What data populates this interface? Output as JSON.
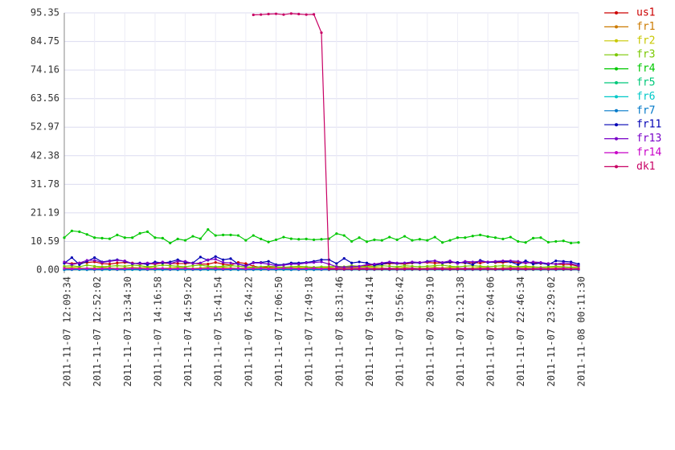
{
  "chart_data": {
    "type": "line",
    "categories": [
      "2011-11-07 12:09:34",
      null,
      null,
      null,
      "2011-11-07 12:52:02",
      null,
      null,
      null,
      "2011-11-07 13:34:30",
      null,
      null,
      null,
      "2011-11-07 14:16:58",
      null,
      null,
      null,
      "2011-11-07 14:59:26",
      null,
      null,
      null,
      "2011-11-07 15:41:54",
      null,
      null,
      null,
      "2011-11-07 16:24:22",
      null,
      null,
      null,
      "2011-11-07 17:06:50",
      null,
      null,
      null,
      "2011-11-07 17:49:18",
      null,
      null,
      null,
      "2011-11-07 18:31:46",
      null,
      null,
      null,
      "2011-11-07 19:14:14",
      null,
      null,
      null,
      "2011-11-07 19:56:42",
      null,
      null,
      null,
      "2011-11-07 20:39:10",
      null,
      null,
      null,
      "2011-11-07 21:21:38",
      null,
      null,
      null,
      "2011-11-07 22:04:06",
      null,
      null,
      null,
      "2011-11-07 22:46:34",
      null,
      null,
      null,
      "2011-11-07 23:29:02",
      null,
      null,
      null,
      "2011-11-08 00:11:30"
    ],
    "ylim": [
      0,
      95.35
    ],
    "yticks": [
      {
        "value": 0,
        "label": "0.00"
      },
      10.59,
      21.19,
      31.78,
      42.38,
      52.97,
      63.56,
      74.16,
      84.75,
      95.35
    ],
    "grid": true,
    "legend": "right",
    "series": [
      {
        "name": "us1",
        "color": "#cc0000",
        "values": [
          2.6,
          2.4,
          2.6,
          2.8,
          3.0,
          2.4,
          2.2,
          2.6,
          2.8,
          2.6,
          2.2,
          2.4,
          2.2,
          2.6,
          2.4,
          2.4,
          2.4,
          2.6,
          2.2,
          2.2,
          2.8,
          2.2,
          1.8,
          2.8,
          2.4,
          1.4,
          1.0,
          1.0,
          0.8,
          0.8,
          0.8,
          0.8,
          0.8,
          0.8,
          0.8,
          0.8,
          0.8,
          1.0,
          1.0,
          1.2,
          1.6,
          2.0,
          2.2,
          2.4,
          2.4,
          2.2,
          2.6,
          2.8,
          2.8,
          2.6,
          2.6,
          2.8,
          2.8,
          2.6,
          2.8,
          2.6,
          3.0,
          2.8,
          2.8,
          3.0,
          2.8,
          2.6,
          2.8,
          2.4,
          2.4,
          2.2,
          2.0,
          2.0,
          1.4
        ]
      },
      {
        "name": "fr1",
        "color": "#cc7a00",
        "values": [
          0.4,
          0.6,
          0.4,
          0.5,
          0.4,
          0.6,
          0.5,
          0.4,
          0.6,
          0.4,
          0.4,
          0.6,
          0.4,
          0.5,
          0.4,
          0.6,
          0.5,
          0.4,
          0.6,
          0.4,
          0.4,
          0.6,
          0.4,
          0.5,
          0.4,
          0.6,
          0.5,
          0.4,
          0.6,
          0.4,
          0.4,
          0.6,
          0.4,
          0.5,
          0.4,
          0.6,
          0.5,
          0.4,
          0.6,
          0.4,
          0.4,
          0.6,
          0.4,
          0.5,
          0.4,
          0.6,
          0.5,
          0.4,
          0.6,
          0.4,
          0.4,
          0.6,
          0.4,
          0.5,
          0.4,
          0.6,
          0.5,
          0.4,
          0.6,
          0.4,
          0.4,
          0.6,
          0.4,
          0.5,
          0.4,
          0.6,
          0.5,
          0.4,
          0.6
        ]
      },
      {
        "name": "fr2",
        "color": "#c8c800",
        "values": [
          0.8,
          1.0,
          0.8,
          0.6,
          0.8,
          1.0,
          0.8,
          0.6,
          0.8,
          1.0,
          0.8,
          1.0,
          0.8,
          0.6,
          0.8,
          1.0,
          0.8,
          0.6,
          0.8,
          1.0,
          0.8,
          1.0,
          0.8,
          0.6,
          0.8,
          1.0,
          0.8,
          0.6,
          0.8,
          1.0,
          0.8,
          1.0,
          0.8,
          0.6,
          0.8,
          1.0,
          0.8,
          0.6,
          0.8,
          1.0,
          0.8,
          1.0,
          0.8,
          0.6,
          0.8,
          1.0,
          0.8,
          0.6,
          0.8,
          1.0,
          0.8,
          1.0,
          0.8,
          0.6,
          0.8,
          1.0,
          0.8,
          0.6,
          0.8,
          1.0,
          0.8,
          1.0,
          0.8,
          0.6,
          0.8,
          1.0,
          0.8,
          0.6,
          0.8
        ]
      },
      {
        "name": "fr3",
        "color": "#7ac800",
        "values": [
          1.4,
          1.6,
          1.2,
          1.8,
          1.4,
          1.2,
          1.4,
          1.6,
          1.4,
          1.8,
          1.6,
          1.2,
          1.4,
          1.8,
          1.6,
          1.4,
          1.2,
          1.6,
          1.8,
          1.4,
          1.2,
          1.4,
          1.6,
          1.4,
          1.2,
          1.0,
          1.2,
          1.4,
          1.2,
          1.0,
          1.2,
          1.4,
          1.2,
          1.0,
          1.2,
          1.2,
          1.4,
          1.2,
          1.6,
          1.4,
          1.2,
          1.4,
          1.6,
          1.4,
          1.2,
          1.6,
          1.4,
          1.2,
          1.4,
          1.6,
          1.8,
          1.4,
          1.2,
          1.4,
          1.6,
          1.4,
          1.2,
          1.4,
          1.6,
          1.4,
          1.2,
          1.4,
          1.2,
          1.0,
          1.2,
          1.4,
          1.2,
          1.0,
          1.2
        ]
      },
      {
        "name": "fr4",
        "color": "#00c800",
        "values": [
          12.0,
          14.5,
          14.2,
          13.2,
          12.0,
          11.8,
          11.6,
          13.0,
          12.0,
          12.0,
          13.6,
          14.2,
          12.0,
          11.8,
          10.0,
          11.5,
          11.0,
          12.5,
          11.6,
          15.0,
          12.8,
          13.0,
          13.0,
          12.8,
          11.0,
          12.8,
          11.5,
          10.4,
          11.2,
          12.2,
          11.6,
          11.4,
          11.5,
          11.2,
          11.4,
          11.6,
          13.5,
          12.8,
          10.6,
          12.0,
          10.5,
          11.2,
          11.0,
          12.2,
          11.2,
          12.5,
          11.0,
          11.4,
          11.0,
          12.2,
          10.2,
          11.0,
          12.0,
          12.0,
          12.6,
          13.0,
          12.4,
          12.0,
          11.5,
          12.2,
          10.6,
          10.2,
          11.8,
          12.0,
          10.3,
          10.6,
          10.8,
          10.0,
          10.2
        ]
      },
      {
        "name": "fr5",
        "color": "#00c87a",
        "values": [
          0.2,
          0.3,
          0.2,
          0.2,
          0.3,
          0.2,
          0.2,
          0.3,
          0.2,
          0.2,
          0.2,
          0.3,
          0.2,
          0.2,
          0.3,
          0.2,
          0.2,
          0.3,
          0.2,
          0.2,
          0.2,
          0.3,
          0.2,
          0.2,
          0.3,
          0.2,
          0.2,
          0.3,
          0.2,
          0.2,
          0.2,
          0.3,
          0.2,
          0.2,
          0.3,
          0.2,
          0.2,
          0.3,
          0.2,
          0.2,
          0.2,
          0.3,
          0.2,
          0.2,
          0.3,
          0.2,
          0.2,
          0.3,
          0.2,
          0.2,
          0.2,
          0.3,
          0.2,
          0.2,
          0.3,
          0.2,
          0.2,
          0.3,
          0.2,
          0.2,
          0.2,
          0.3,
          0.2,
          0.2,
          0.3,
          0.2,
          0.2,
          0.3,
          0.2
        ]
      },
      {
        "name": "fr6",
        "color": "#00c8c8",
        "values": [
          0.1,
          0.2,
          0.1,
          0.1,
          0.2,
          0.1,
          0.1,
          0.2,
          0.1,
          0.1,
          0.1,
          0.2,
          0.1,
          0.1,
          0.2,
          0.1,
          0.1,
          0.2,
          0.1,
          0.1,
          0.1,
          0.2,
          0.1,
          0.1,
          0.2,
          0.1,
          0.1,
          0.2,
          0.1,
          0.1,
          0.1,
          0.2,
          0.1,
          0.1,
          0.2,
          0.1,
          0.1,
          0.2,
          0.1,
          0.1,
          0.1,
          0.2,
          0.1,
          0.1,
          0.2,
          0.1,
          0.1,
          0.2,
          0.1,
          0.1,
          0.1,
          0.2,
          0.1,
          0.1,
          0.2,
          0.1,
          0.1,
          0.2,
          0.1,
          0.1,
          0.1,
          0.2,
          0.1,
          0.1,
          0.2,
          0.1,
          0.1,
          0.2,
          0.1
        ]
      },
      {
        "name": "fr7",
        "color": "#0078c8",
        "values": [
          0.1,
          0.1,
          0.2,
          0.1,
          0.1,
          0.1,
          0.2,
          0.1,
          0.1,
          0.2,
          0.1,
          0.1,
          0.2,
          0.1,
          0.1,
          0.1,
          0.2,
          0.1,
          0.1,
          0.2,
          0.1,
          0.1,
          0.2,
          0.1,
          0.1,
          0.1,
          0.2,
          0.1,
          0.1,
          0.2,
          0.1,
          0.1,
          0.2,
          0.1,
          0.1,
          0.1,
          0.2,
          0.1,
          0.1,
          0.2,
          0.1,
          0.1,
          0.2,
          0.1,
          0.1,
          0.1,
          0.2,
          0.1,
          0.1,
          0.2,
          0.1,
          0.1,
          0.2,
          0.1,
          0.1,
          0.1,
          0.2,
          0.1,
          0.1,
          0.2,
          0.1,
          0.1,
          0.2,
          0.1,
          0.1,
          0.1,
          0.2,
          0.1,
          0.1
        ]
      },
      {
        "name": "fr11",
        "color": "#0000b4",
        "values": [
          2.5,
          4.6,
          2.0,
          3.2,
          4.6,
          3.0,
          3.4,
          3.8,
          3.2,
          2.3,
          2.6,
          2.0,
          3.0,
          2.6,
          3.0,
          3.8,
          2.8,
          2.6,
          4.8,
          3.6,
          5.0,
          3.8,
          4.2,
          2.2,
          1.6,
          2.8,
          2.8,
          3.2,
          2.0,
          2.0,
          2.6,
          2.6,
          2.8,
          3.2,
          3.8,
          3.8,
          2.4,
          4.3,
          2.6,
          3.0,
          2.6,
          1.8,
          2.2,
          2.8,
          2.4,
          2.6,
          2.8,
          2.6,
          3.2,
          3.4,
          2.6,
          3.0,
          2.8,
          2.8,
          2.0,
          3.6,
          2.8,
          3.0,
          3.2,
          3.0,
          2.0,
          3.4,
          2.2,
          2.6,
          2.0,
          3.4,
          3.2,
          3.0,
          2.2
        ]
      },
      {
        "name": "fr13",
        "color": "#7800c8",
        "values": [
          3.0,
          2.0,
          2.6,
          3.6,
          3.6,
          2.8,
          3.2,
          3.6,
          3.4,
          2.4,
          2.4,
          2.6,
          2.4,
          3.0,
          2.4,
          3.2,
          3.2,
          2.4,
          2.6,
          3.8,
          4.0,
          2.8,
          2.6,
          2.2,
          1.4,
          2.6,
          2.6,
          2.2,
          1.6,
          1.8,
          2.2,
          2.2,
          2.6,
          2.8,
          3.0,
          2.2,
          1.2,
          1.0,
          1.2,
          1.4,
          2.0,
          2.2,
          2.6,
          3.0,
          2.6,
          2.6,
          3.0,
          2.8,
          3.0,
          3.4,
          2.8,
          3.4,
          2.4,
          3.2,
          3.0,
          3.2,
          3.0,
          3.2,
          3.4,
          3.4,
          3.2,
          2.6,
          3.0,
          2.8,
          2.4,
          2.2,
          2.6,
          2.4,
          1.6
        ]
      },
      {
        "name": "fr14",
        "color": "#c800c8",
        "values": [
          0.6,
          0.4,
          0.5,
          0.6,
          0.4,
          0.5,
          0.6,
          0.4,
          0.5,
          0.6,
          0.6,
          0.4,
          0.5,
          0.6,
          0.4,
          0.5,
          0.6,
          0.4,
          0.5,
          0.6,
          0.6,
          0.4,
          0.5,
          0.6,
          0.4,
          0.5,
          0.6,
          0.4,
          0.5,
          0.6,
          0.6,
          0.4,
          0.5,
          0.6,
          0.4,
          0.5,
          0.6,
          0.4,
          0.5,
          0.6,
          0.6,
          0.4,
          0.5,
          0.6,
          0.4,
          0.5,
          0.6,
          0.4,
          0.5,
          0.6,
          0.6,
          0.4,
          0.5,
          0.6,
          0.4,
          0.5,
          0.6,
          0.4,
          0.5,
          0.6,
          0.6,
          0.4,
          0.5,
          0.6,
          0.4,
          0.5,
          0.6,
          0.4,
          0.5
        ]
      },
      {
        "name": "dk1",
        "color": "#c80064",
        "values": [
          null,
          null,
          null,
          null,
          null,
          null,
          null,
          null,
          null,
          null,
          null,
          null,
          null,
          null,
          null,
          null,
          null,
          null,
          null,
          null,
          null,
          null,
          null,
          null,
          null,
          94.6,
          94.7,
          94.9,
          95.0,
          94.7,
          95.1,
          94.9,
          94.7,
          94.8,
          88.0,
          0.3,
          0.3,
          0.3,
          0.3,
          0.3,
          0.3,
          0.3,
          0.3,
          0.3,
          0.3,
          0.3,
          0.3,
          0.3,
          0.3,
          0.3,
          0.3,
          0.3,
          0.3,
          0.3,
          0.3,
          0.3,
          0.3,
          0.3,
          0.3,
          0.3,
          0.3,
          0.3,
          0.3,
          0.3,
          0.3,
          0.3,
          0.3,
          0.3,
          0.3
        ]
      }
    ]
  }
}
